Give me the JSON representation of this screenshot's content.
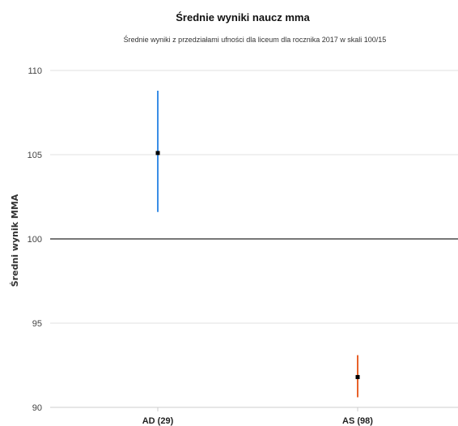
{
  "chart_data": {
    "type": "errorbar",
    "title": "Średnie wyniki naucz mma",
    "subtitle": "Średnie wyniki z przedziałami ufności dla liceum dla rocznika 2017 w skali 100/15",
    "ylabel": "Średni wynik MMA",
    "xlabel": "",
    "ylim": [
      90,
      110
    ],
    "yticks": [
      90,
      95,
      100,
      105,
      110
    ],
    "reference_line": 100,
    "grid": true,
    "categories": [
      "AD (29)",
      "AS (98)"
    ],
    "points": [
      {
        "category": "AD (29)",
        "mean": 105.1,
        "lower": 101.6,
        "upper": 108.8,
        "color": "#3a8ee6"
      },
      {
        "category": "AS (98)",
        "mean": 91.8,
        "lower": 90.6,
        "upper": 93.1,
        "color": "#e8622a"
      }
    ],
    "colors": {
      "grid": "#e2e2e2",
      "axis": "#cccccc",
      "reference": "#777777",
      "marker": "#000000"
    }
  }
}
